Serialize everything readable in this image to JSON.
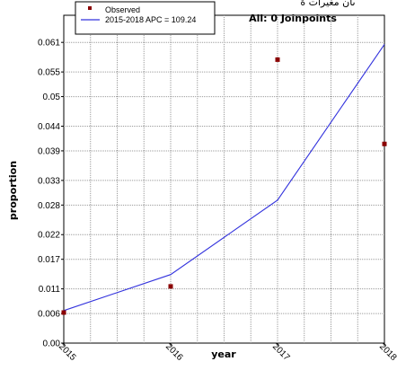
{
  "header_fragment": "ىان مغيرات ة",
  "annotation": "All: 0 Joinpoints",
  "chart_data": {
    "type": "line",
    "xlabel": "year",
    "ylabel": "proportion",
    "x_ticks": [
      "2015",
      "2016",
      "2017",
      "2018"
    ],
    "y_ticks": [
      "0.00",
      "0.006",
      "0.011",
      "0.017",
      "0.022",
      "0.028",
      "0.033",
      "0.039",
      "0.044",
      "0.05",
      "0.055",
      "0.061"
    ],
    "xlim": [
      2015,
      2018
    ],
    "ylim": [
      0,
      0.0665
    ],
    "grid": true,
    "legend_position": "top-left",
    "series": [
      {
        "name": "Observed",
        "kind": "scatter",
        "color": "#8b0000",
        "points": [
          {
            "x": 2015,
            "y": 0.0062
          },
          {
            "x": 2016,
            "y": 0.0115
          },
          {
            "x": 2017,
            "y": 0.0575
          },
          {
            "x": 2018,
            "y": 0.0404
          }
        ]
      },
      {
        "name": "2015-2018 APC = 109.24",
        "kind": "line",
        "color": "#3333dd",
        "points": [
          {
            "x": 2015,
            "y": 0.0066
          },
          {
            "x": 2016,
            "y": 0.0139
          },
          {
            "x": 2017,
            "y": 0.029
          },
          {
            "x": 2018,
            "y": 0.0606
          }
        ]
      }
    ]
  }
}
